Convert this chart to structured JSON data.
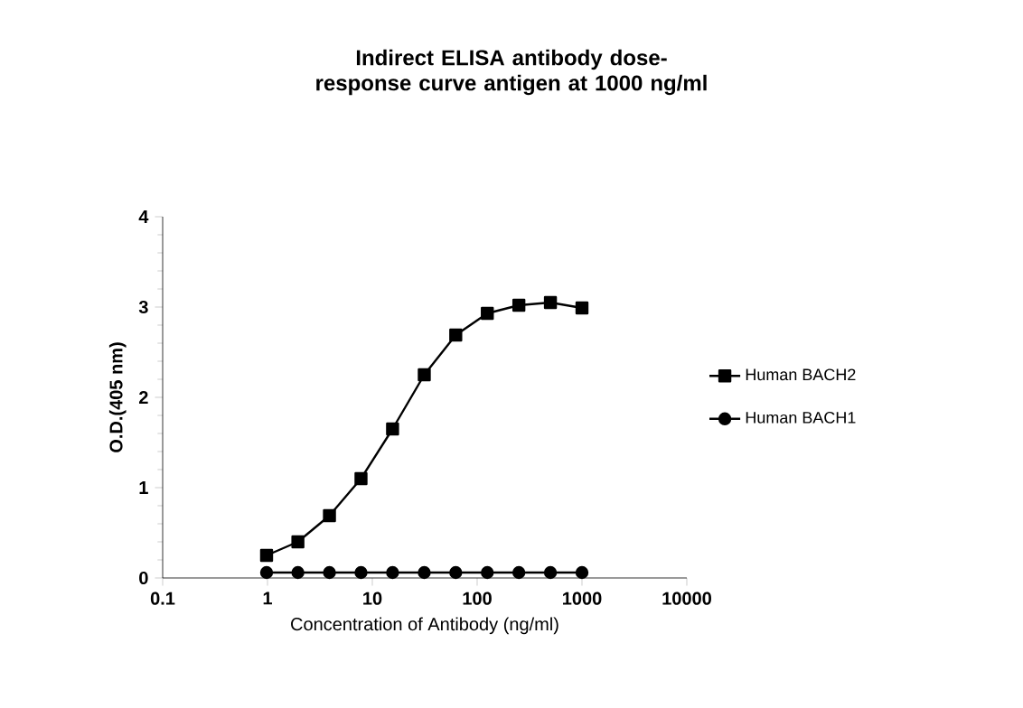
{
  "chart_data": {
    "type": "line",
    "title": "Indirect ELISA antibody dose-response curve antigen at 1000 ng/ml",
    "xlabel": "Concentration of Antibody (ng/ml)",
    "ylabel": "O.D.(405 nm)",
    "log": "x",
    "xlim": [
      0.1,
      10000
    ],
    "xticks": [
      0.1,
      1,
      10,
      100,
      1000,
      10000
    ],
    "ylim": [
      0,
      4
    ],
    "yticks": [
      0,
      1,
      2,
      3,
      4
    ],
    "legend": "right",
    "grid": false,
    "x": [
      0.98,
      1.95,
      3.9,
      7.8,
      15.6,
      31.3,
      62.5,
      125,
      250,
      500,
      1000
    ],
    "series": [
      {
        "name": "Human BACH2",
        "color": "#000000",
        "marker": "square",
        "values": [
          0.25,
          0.4,
          0.69,
          1.1,
          1.65,
          2.25,
          2.69,
          2.93,
          3.02,
          3.05,
          2.99
        ]
      },
      {
        "name": "Human BACH1",
        "color": "#000000",
        "marker": "circle",
        "values": [
          0.06,
          0.06,
          0.06,
          0.06,
          0.06,
          0.06,
          0.06,
          0.06,
          0.06,
          0.06,
          0.06
        ]
      }
    ]
  }
}
